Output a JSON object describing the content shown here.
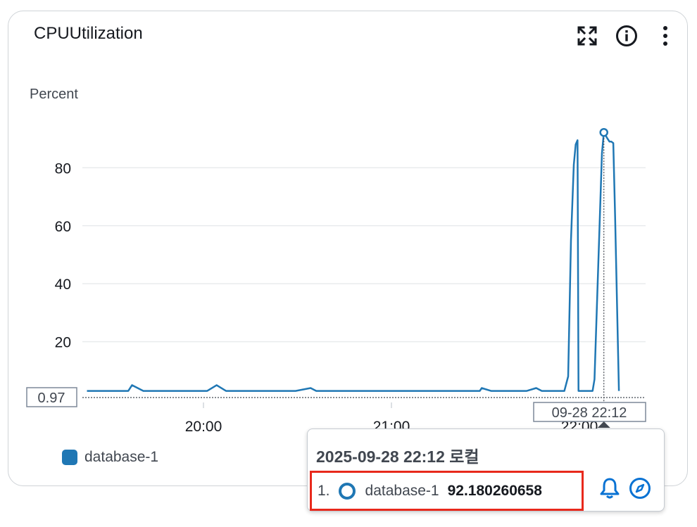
{
  "widget": {
    "title": "CPUUtilization",
    "icons": [
      "expand-icon",
      "info-icon",
      "more-vertical-icon"
    ]
  },
  "chart_data": {
    "type": "line",
    "ylabel": "Percent",
    "yticks": [
      20,
      40,
      60,
      80
    ],
    "xtick_labels": [
      "20:00",
      "21:00",
      "22:00"
    ],
    "ylim": [
      0,
      95
    ],
    "grid": true,
    "threshold": {
      "label": "0.97",
      "value": 0.97
    },
    "hover_x_label": "09-28 22:12",
    "series": [
      {
        "name": "database-1",
        "color": "#1f77b4",
        "x": [
          19.38,
          19.45,
          19.52,
          19.6,
          19.62,
          19.68,
          19.73,
          19.78,
          19.83,
          19.88,
          19.92,
          19.97,
          20.02,
          20.07,
          20.12,
          20.17,
          20.2,
          20.27,
          20.35,
          20.42,
          20.49,
          20.57,
          20.6,
          20.64,
          20.7,
          20.77,
          20.82,
          20.87,
          20.92,
          20.95,
          20.98,
          21.03,
          21.08,
          21.15,
          21.2,
          21.3,
          21.4,
          21.47,
          21.48,
          21.53,
          21.57,
          21.62,
          21.67,
          21.72,
          21.77,
          21.8,
          21.86,
          21.92,
          21.94,
          21.955,
          21.97,
          21.98,
          21.99,
          21.995,
          22.0,
          22.03,
          22.07,
          22.08,
          22.12,
          22.13,
          22.15,
          22.16,
          22.17,
          22.18,
          22.19,
          22.21
        ],
        "y": [
          3,
          3,
          3,
          3,
          5,
          3,
          3,
          3,
          3,
          3,
          3,
          3,
          3,
          5,
          3,
          3,
          3,
          3,
          3,
          3,
          3,
          4,
          3,
          3,
          3,
          3,
          3,
          3,
          3,
          3,
          3,
          3,
          3,
          3,
          3,
          3,
          3,
          3,
          4,
          3,
          3,
          3,
          3,
          3,
          4,
          3,
          3,
          3,
          8,
          55,
          81,
          88,
          89.5,
          3,
          3,
          3,
          3,
          7,
          85,
          92.18,
          90,
          89,
          89,
          88.5,
          63,
          3
        ]
      }
    ]
  },
  "legend": {
    "label": "database-1"
  },
  "tooltip": {
    "timestamp": "2025-09-28 22:12 로컬",
    "index": "1.",
    "series_name": "database-1",
    "value": "92.180260658"
  }
}
